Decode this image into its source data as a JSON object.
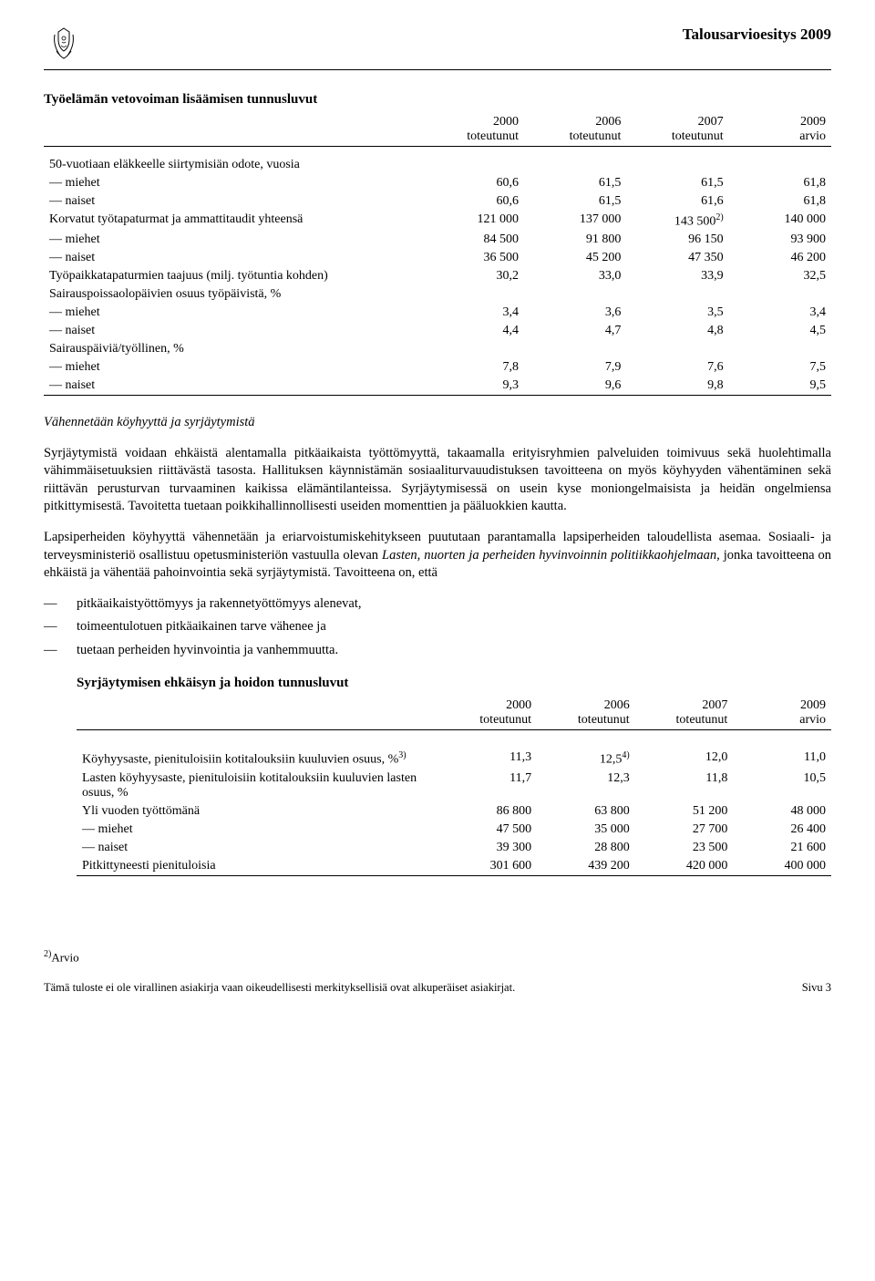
{
  "header": {
    "doc_title": "Talousarvioesitys 2009"
  },
  "table1": {
    "title": "Työelämän vetovoiman lisäämisen tunnusluvut",
    "columns": [
      {
        "line1": "2000",
        "line2": "toteutunut"
      },
      {
        "line1": "2006",
        "line2": "toteutunut"
      },
      {
        "line1": "2007",
        "line2": "toteutunut"
      },
      {
        "line1": "2009",
        "line2": "arvio"
      }
    ],
    "rows": [
      {
        "label": "50-vuotiaan eläkkeelle siirtymisiän odote, vuosia",
        "vals": [
          "",
          "",
          "",
          ""
        ]
      },
      {
        "label": "— miehet",
        "vals": [
          "60,6",
          "61,5",
          "61,5",
          "61,8"
        ]
      },
      {
        "label": "— naiset",
        "vals": [
          "60,6",
          "61,5",
          "61,6",
          "61,8"
        ]
      },
      {
        "label": "Korvatut työtapaturmat ja ammattitaudit yhteensä",
        "vals": [
          "121 000",
          "137 000",
          "143 500",
          "140 000"
        ],
        "sup_after_col3": "2)"
      },
      {
        "label": "— miehet",
        "vals": [
          "84 500",
          "91 800",
          "96 150",
          "93 900"
        ]
      },
      {
        "label": "— naiset",
        "vals": [
          "36 500",
          "45 200",
          "47 350",
          "46 200"
        ]
      },
      {
        "label": "Työpaikkatapaturmien taajuus (milj. työtuntia kohden)",
        "vals": [
          "30,2",
          "33,0",
          "33,9",
          "32,5"
        ]
      },
      {
        "label": "Sairauspoissaolopäivien osuus työpäivistä, %",
        "vals": [
          "",
          "",
          "",
          ""
        ]
      },
      {
        "label": "— miehet",
        "vals": [
          "3,4",
          "3,6",
          "3,5",
          "3,4"
        ]
      },
      {
        "label": "— naiset",
        "vals": [
          "4,4",
          "4,7",
          "4,8",
          "4,5"
        ]
      },
      {
        "label": "Sairauspäiviä/työllinen, %",
        "vals": [
          "",
          "",
          "",
          ""
        ]
      },
      {
        "label": "— miehet",
        "vals": [
          "7,8",
          "7,9",
          "7,6",
          "7,5"
        ]
      },
      {
        "label": "— naiset",
        "vals": [
          "9,3",
          "9,6",
          "9,8",
          "9,5"
        ]
      }
    ]
  },
  "section_heading": "Vähennetään köyhyyttä ja syrjäytymistä",
  "para1_a": "Syrjäytymistä voidaan ehkäistä alentamalla pitkäaikaista työttömyyttä, takaamalla erityisryhmien palveluiden toimivuus sekä huolehtimalla vähimmäisetuuksien riittävästä tasosta. Hallituksen käynnistämän sosiaaliturvauudistuksen tavoitteena on myös köyhyyden vähentäminen sekä riittävän perusturvan turvaaminen kaikissa elämäntilanteissa. Syrjäytymisessä on usein kyse moniongelmaisista ja heidän ongelmiensa pitkittymisestä. Tavoitetta tuetaan poikkihallinnollisesti useiden momenttien ja pääluokkien kautta.",
  "para2_a": "Lapsiperheiden köyhyyttä vähennetään ja eriarvoistumiskehitykseen puututaan parantamalla lapsiperheiden taloudellista asemaa. Sosiaali- ja terveysministeriö osallistuu opetusministeriön vastuulla olevan ",
  "para2_italic": "Lasten, nuorten ja perheiden hyvinvoinnin politiikkaohjelmaan",
  "para2_b": ", jonka tavoitteena on ehkäistä ja vähentää pahoinvointia sekä syrjäytymistä. Tavoitteena on, että",
  "bullets": [
    "pitkäaikaistyöttömyys ja rakennetyöttömyys alenevat,",
    "toimeentulotuen pitkäaikainen tarve vähenee ja",
    "tuetaan perheiden hyvinvointia ja vanhemmuutta."
  ],
  "table2": {
    "title": "Syrjäytymisen ehkäisyn ja hoidon tunnusluvut",
    "columns": [
      {
        "line1": "2000",
        "line2": "toteutunut"
      },
      {
        "line1": "2006",
        "line2": "toteutunut"
      },
      {
        "line1": "2007",
        "line2": "toteutunut"
      },
      {
        "line1": "2009",
        "line2": "arvio"
      }
    ],
    "rows": [
      {
        "label": "Köyhyysaste, pienituloisiin kotitalouksiin kuuluvien osuus, %",
        "sup_label": "3)",
        "vals": [
          "11,3",
          "12,5",
          "12,0",
          "11,0"
        ],
        "sup_after_col2": "4)"
      },
      {
        "label": "Lasten köyhyysaste, pienituloisiin kotitalouksiin kuuluvien lasten osuus, %",
        "vals": [
          "11,7",
          "12,3",
          "11,8",
          "10,5"
        ]
      },
      {
        "label": "Yli vuoden työttömänä",
        "vals": [
          "86 800",
          "63 800",
          "51 200",
          "48 000"
        ]
      },
      {
        "label": "— miehet",
        "vals": [
          "47 500",
          "35 000",
          "27 700",
          "26 400"
        ]
      },
      {
        "label": "— naiset",
        "vals": [
          "39 300",
          "28 800",
          "23 500",
          "21 600"
        ]
      },
      {
        "label": "Pitkittyneesti pienituloisia",
        "vals": [
          "301 600",
          "439 200",
          "420 000",
          "400 000"
        ]
      }
    ]
  },
  "footnote": {
    "mark": "2)",
    "text": "Arvio"
  },
  "footer": {
    "left": "Tämä tuloste ei ole virallinen asiakirja vaan oikeudellisesti merkityksellisiä ovat alkuperäiset asiakirjat.",
    "right": "Sivu 3"
  },
  "colors": {
    "text": "#000000",
    "bg": "#ffffff",
    "rule": "#000000"
  }
}
